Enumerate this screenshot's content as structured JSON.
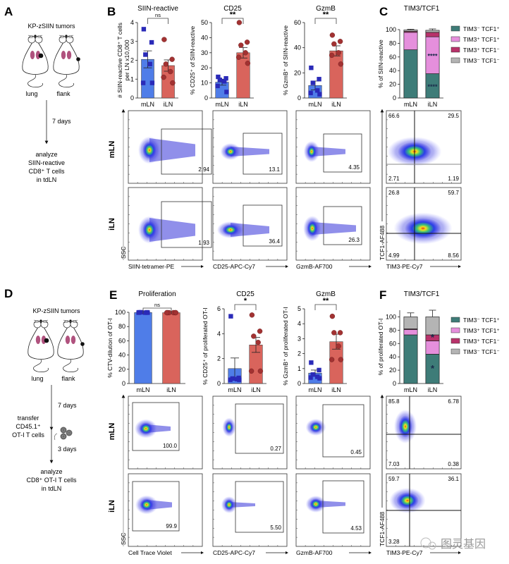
{
  "colors": {
    "mln_bar": "#4f7de8",
    "mln_point": "#2a2ab8",
    "iln_bar": "#d9645c",
    "iln_point": "#a23232",
    "tim3neg_tcf1pos": "#3e7c78",
    "tim3pos_tcf1pos": "#e58fdc",
    "tim3pos_tcf1neg": "#b8326a",
    "tim3neg_tcf1neg": "#b4b4b4"
  },
  "panels": {
    "A": {
      "letter": "A",
      "title": "KP-zSIIN tumors",
      "mouse_labels": [
        "lung",
        "flank"
      ],
      "step1": "7 days",
      "outcome": [
        "analyze",
        "SIIN-reactive",
        "CD8⁺ T cells",
        "in tdLN"
      ]
    },
    "D": {
      "letter": "D",
      "title": "KP-zSIIN tumors",
      "mouse_labels": [
        "lung",
        "flank"
      ],
      "step1": "7 days",
      "transfer": [
        "transfer",
        "CD45.1⁺",
        "OT-I T cells"
      ],
      "step2": "3 days",
      "outcome": [
        "analyze",
        "CD8⁺ OT-I T cells",
        "in tdLN"
      ]
    },
    "B": {
      "letter": "B"
    },
    "C": {
      "letter": "C"
    },
    "E": {
      "letter": "E"
    },
    "F": {
      "letter": "F"
    }
  },
  "row_labels": {
    "mln": "mLN",
    "iln": "iLN"
  },
  "flow_top": {
    "y_axis": "SSC",
    "columns": [
      {
        "x_axis": "SIIN-tetramer-PE",
        "gates": [
          "2.94",
          "1.93"
        ]
      },
      {
        "x_axis": "CD25-APC-Cy7",
        "gates": [
          "13.1",
          "36.4"
        ]
      },
      {
        "x_axis": "GzmB-AF700",
        "gates": [
          "4.35",
          "26.3"
        ]
      }
    ],
    "quadrant": {
      "x_axis": "TIM3-PE-Cy7",
      "y_axis": "TCF1-AF488",
      "mln": [
        "66.6",
        "29.5",
        "2.71",
        "1.19"
      ],
      "iln": [
        "26.8",
        "59.7",
        "4.99",
        "8.56"
      ]
    }
  },
  "flow_bottom": {
    "y_axis": "SSC",
    "columns": [
      {
        "x_axis": "Cell Trace Violet",
        "gates": [
          "100.0",
          "99.9"
        ]
      },
      {
        "x_axis": "CD25-APC-Cy7",
        "gates": [
          "0.27",
          "5.50"
        ]
      },
      {
        "x_axis": "GzmB-AF700",
        "gates": [
          "0.45",
          "4.53"
        ]
      }
    ],
    "quadrant": {
      "x_axis": "TIM3-PE-Cy7",
      "y_axis": "TCF1-AF488",
      "mln": [
        "85.8",
        "6.78",
        "7.03",
        "0.38"
      ],
      "iln": [
        "59.7",
        "36.1",
        "3.28",
        ""
      ]
    }
  },
  "watermark": "图灵基因",
  "chart_data": [
    {
      "id": "B1",
      "type": "bar",
      "title": "SIIN-reactive",
      "ylabel": "# SIIN-reactive CD8⁺ T cells per LN x10,000",
      "ylabel_lines": [
        "# SIIN-reactive CD8⁺ T cells",
        "per LN x10,000"
      ],
      "categories": [
        "mLN",
        "iLN"
      ],
      "ylim": [
        0,
        4
      ],
      "yticks": [
        0,
        1,
        2,
        3,
        4
      ],
      "values": [
        2.05,
        1.72
      ],
      "sem": [
        0.45,
        0.3
      ],
      "points": [
        [
          3.65,
          2.95,
          2.3,
          1.8,
          0.8,
          0.8
        ],
        [
          3.1,
          2.05,
          1.8,
          1.4,
          1.1,
          0.8
        ]
      ],
      "significance": "ns"
    },
    {
      "id": "B2",
      "type": "bar",
      "title": "CD25",
      "ylabel": "% CD25⁺ of SIIN-reactive",
      "categories": [
        "mLN",
        "iLN"
      ],
      "ylim": [
        0,
        50
      ],
      "yticks": [
        0,
        10,
        20,
        30,
        40,
        50
      ],
      "values": [
        10.5,
        30
      ],
      "sem": [
        2,
        3.5
      ],
      "points": [
        [
          14,
          13,
          12,
          11,
          8,
          4
        ],
        [
          50,
          37,
          35,
          30,
          27,
          23
        ]
      ],
      "significance": "**"
    },
    {
      "id": "B3",
      "type": "bar",
      "title": "GzmB",
      "ylabel": "% GzmB⁺ of SIIN-reactive",
      "categories": [
        "mLN",
        "iLN"
      ],
      "ylim": [
        0,
        60
      ],
      "yticks": [
        0,
        20,
        40,
        60
      ],
      "values": [
        10,
        37.5
      ],
      "sem": [
        3.5,
        4
      ],
      "points": [
        [
          24,
          15,
          12,
          6,
          4,
          3
        ],
        [
          50,
          45,
          43,
          36,
          34,
          27
        ]
      ],
      "significance": "**"
    },
    {
      "id": "C",
      "type": "bar",
      "stacked": true,
      "title": "TIM3/TCF1",
      "ylabel": "% of SIIN-reactive",
      "categories": [
        "mLN",
        "iLN"
      ],
      "ylim": [
        0,
        100
      ],
      "yticks": [
        0,
        20,
        40,
        60,
        80,
        100
      ],
      "series": [
        {
          "name": "TIM3⁻ TCF1⁺",
          "values": [
            70.5,
            35.5
          ],
          "sem": [
            1.5,
            4
          ]
        },
        {
          "name": "TIM3⁺ TCF1⁺",
          "values": [
            25.5,
            54
          ],
          "sem": [
            1,
            3
          ]
        },
        {
          "name": "TIM3⁺ TCF1⁻",
          "values": [
            1.5,
            6.5
          ],
          "sem": [
            0.5,
            2
          ]
        },
        {
          "name": "TIM3⁻ TCF1⁻",
          "values": [
            2,
            3
          ],
          "sem": [
            1,
            2
          ]
        }
      ],
      "annotations": [
        {
          "category": "iLN",
          "series": 0,
          "text": "****"
        },
        {
          "category": "iLN",
          "series": 1,
          "text": "****"
        }
      ]
    },
    {
      "id": "E1",
      "type": "bar",
      "title": "Proliferation",
      "ylabel": "% CTV-dilution of OT-I",
      "categories": [
        "mLN",
        "iLN"
      ],
      "ylim": [
        0,
        100
      ],
      "yticks": [
        0,
        20,
        40,
        60,
        80,
        100
      ],
      "values": [
        99.7,
        99.5
      ],
      "sem": [
        0.2,
        0.3
      ],
      "points": [
        [
          100,
          100,
          100,
          99.5,
          99.5,
          99.5
        ],
        [
          99.5,
          99.5,
          99.5,
          99.5,
          99.5,
          99.5
        ]
      ],
      "significance": "ns"
    },
    {
      "id": "E2",
      "type": "bar",
      "title": "CD25",
      "ylabel": "% CD25⁺ of proliferated OT-I",
      "categories": [
        "mLN",
        "iLN"
      ],
      "ylim": [
        0,
        6
      ],
      "yticks": [
        0,
        2,
        4,
        6
      ],
      "values": [
        1.2,
        3.1
      ],
      "sem": [
        0.85,
        0.6
      ],
      "points": [
        [
          5.4,
          0.45,
          0.4,
          0.35,
          0.3,
          0.3
        ],
        [
          5.5,
          4.2,
          3.8,
          3.3,
          1.0,
          1.0
        ]
      ],
      "significance": "*"
    },
    {
      "id": "E3",
      "type": "bar",
      "title": "GzmB",
      "ylabel": "% GzmB⁺ of proliferated OT-I",
      "categories": [
        "mLN",
        "iLN"
      ],
      "ylim": [
        0,
        5
      ],
      "yticks": [
        0,
        1,
        2,
        3,
        4,
        5
      ],
      "values": [
        0.7,
        2.8
      ],
      "sem": [
        0.2,
        0.5
      ],
      "points": [
        [
          1.4,
          0.9,
          0.6,
          0.45,
          0.4,
          0.35
        ],
        [
          4.5,
          3.4,
          3.4,
          2.5,
          1.6,
          1.6
        ]
      ],
      "significance": "**"
    },
    {
      "id": "F",
      "type": "bar",
      "stacked": true,
      "title": "TIM3/TCF1",
      "ylabel": "% of proliferated OT-I",
      "categories": [
        "mLN",
        "iLN"
      ],
      "ylim": [
        0,
        110
      ],
      "yticks": [
        0,
        20,
        40,
        60,
        80,
        100
      ],
      "series": [
        {
          "name": "TIM3⁻ TCF1⁺",
          "values": [
            73,
            44
          ],
          "sem": [
            4,
            8
          ]
        },
        {
          "name": "TIM3⁺ TCF1⁺",
          "values": [
            8,
            20
          ],
          "sem": [
            2,
            4
          ]
        },
        {
          "name": "TIM3⁺ TCF1⁻",
          "values": [
            1,
            9
          ],
          "sem": [
            0.5,
            3
          ]
        },
        {
          "name": "TIM3⁻ TCF1⁻",
          "values": [
            18,
            27
          ],
          "sem": [
            6,
            10
          ]
        }
      ],
      "annotations": [
        {
          "category": "iLN",
          "series": 0,
          "text": "*"
        },
        {
          "category": "iLN",
          "series": 2,
          "text": "*"
        }
      ]
    }
  ]
}
